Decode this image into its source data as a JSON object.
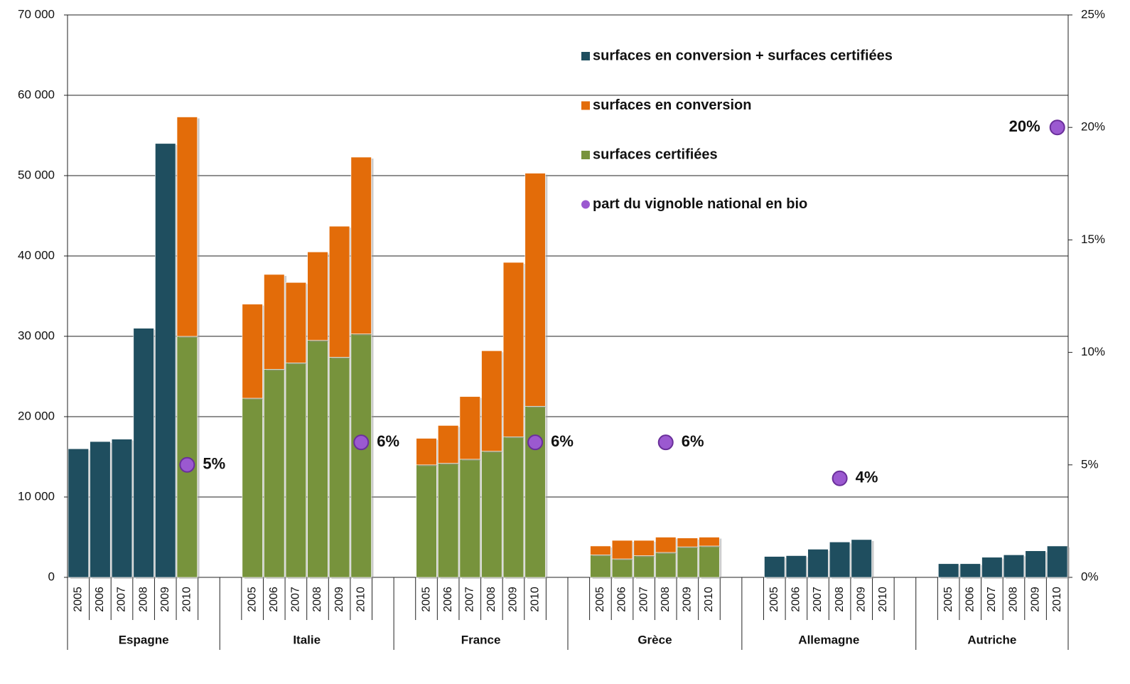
{
  "chart_data": {
    "type": "bar",
    "categories": [
      "2005",
      "2006",
      "2007",
      "2008",
      "2009",
      "2010",
      "2005",
      "2006",
      "2007",
      "2008",
      "2009",
      "2010",
      "2005",
      "2006",
      "2007",
      "2008",
      "2009",
      "2010",
      "2005",
      "2006",
      "2007",
      "2008",
      "2009",
      "2010",
      "2005",
      "2006",
      "2007",
      "2008",
      "2009",
      "2010",
      "2005",
      "2006",
      "2007",
      "2008",
      "2009",
      "2010"
    ],
    "groups": [
      "Espagne",
      "Italie",
      "France",
      "Grèce",
      "Allemagne",
      "Autriche"
    ],
    "series": [
      {
        "name": "surfaces en conversion + surfaces certifiées",
        "color": "#1f4e5f",
        "type": "bar",
        "values": [
          16000,
          16900,
          17200,
          31000,
          54000,
          null,
          null,
          null,
          null,
          null,
          null,
          null,
          null,
          null,
          null,
          null,
          null,
          null,
          null,
          null,
          null,
          null,
          null,
          null,
          2600,
          2700,
          3500,
          4400,
          4700,
          null,
          1700,
          1700,
          2500,
          2800,
          3300,
          3900
        ]
      },
      {
        "name": "surfaces en conversion",
        "color": "#e36c09",
        "type": "bar",
        "values": [
          null,
          null,
          null,
          null,
          null,
          27300,
          11700,
          11800,
          10000,
          11000,
          16300,
          22000,
          3300,
          4700,
          7800,
          12500,
          21700,
          29000,
          1100,
          2300,
          1900,
          1900,
          1100,
          1100,
          null,
          null,
          null,
          null,
          null,
          null,
          null,
          null,
          null,
          null,
          null,
          null
        ]
      },
      {
        "name": "surfaces certifiées",
        "color": "#77933c",
        "type": "bar",
        "values": [
          null,
          null,
          null,
          null,
          null,
          30000,
          22300,
          25900,
          26700,
          29500,
          27400,
          30300,
          14000,
          14200,
          14700,
          15700,
          17500,
          21300,
          2800,
          2300,
          2700,
          3100,
          3800,
          3900,
          null,
          null,
          null,
          null,
          null,
          null,
          null,
          null,
          null,
          null,
          null,
          null
        ]
      },
      {
        "name": "part du vignoble national en bio",
        "color": "#9b59d0",
        "type": "scatter",
        "axis": "y2",
        "values": [
          null,
          null,
          null,
          null,
          null,
          5,
          null,
          null,
          null,
          null,
          null,
          6,
          null,
          null,
          null,
          null,
          null,
          6,
          null,
          null,
          null,
          6,
          null,
          null,
          null,
          null,
          null,
          4.4,
          null,
          null,
          null,
          null,
          null,
          null,
          null,
          20
        ],
        "value_labels": [
          null,
          null,
          null,
          null,
          null,
          "5%",
          null,
          null,
          null,
          null,
          null,
          "6%",
          null,
          null,
          null,
          null,
          null,
          "6%",
          null,
          null,
          null,
          "6%",
          null,
          null,
          null,
          null,
          null,
          "4%",
          null,
          null,
          null,
          null,
          null,
          null,
          null,
          "20%"
        ]
      }
    ],
    "ylim": [
      0,
      70000
    ],
    "yticks": [
      {
        "value": 0,
        "label": "0"
      },
      {
        "value": 10000,
        "label": "10 000"
      },
      {
        "value": 20000,
        "label": "20 000"
      },
      {
        "value": 30000,
        "label": "30 000"
      },
      {
        "value": 40000,
        "label": "40 000"
      },
      {
        "value": 50000,
        "label": "50 000"
      },
      {
        "value": 60000,
        "label": "60 000"
      },
      {
        "value": 70000,
        "label": "70 000"
      }
    ],
    "y2lim": [
      0,
      25
    ],
    "y2ticks": [
      {
        "value": 0,
        "label": "0%"
      },
      {
        "value": 5,
        "label": "5%"
      },
      {
        "value": 10,
        "label": "10%"
      },
      {
        "value": 15,
        "label": "15%"
      },
      {
        "value": 20,
        "label": "20%"
      },
      {
        "value": 25,
        "label": "25%"
      }
    ],
    "grid": true
  }
}
